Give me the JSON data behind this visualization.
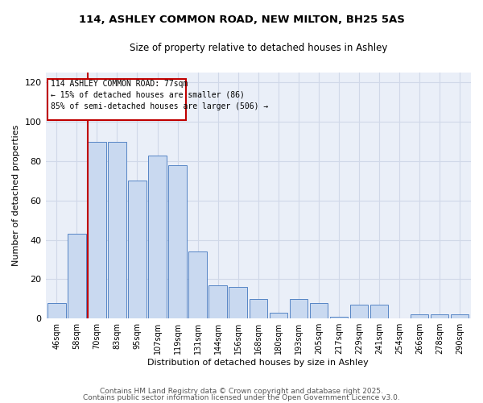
{
  "title1": "114, ASHLEY COMMON ROAD, NEW MILTON, BH25 5AS",
  "title2": "Size of property relative to detached houses in Ashley",
  "xlabel": "Distribution of detached houses by size in Ashley",
  "ylabel": "Number of detached properties",
  "categories": [
    "46sqm",
    "58sqm",
    "70sqm",
    "83sqm",
    "95sqm",
    "107sqm",
    "119sqm",
    "131sqm",
    "144sqm",
    "156sqm",
    "168sqm",
    "180sqm",
    "193sqm",
    "205sqm",
    "217sqm",
    "229sqm",
    "241sqm",
    "254sqm",
    "266sqm",
    "278sqm",
    "290sqm"
  ],
  "values": [
    8,
    43,
    90,
    90,
    70,
    83,
    78,
    34,
    17,
    16,
    10,
    3,
    10,
    8,
    1,
    7,
    7,
    0,
    2,
    2,
    2
  ],
  "bar_color": "#c9d9f0",
  "bar_edge_color": "#5585c5",
  "vline_x_index": 2,
  "vline_color": "#c00000",
  "annotation_lines": [
    "114 ASHLEY COMMON ROAD: 77sqm",
    "← 15% of detached houses are smaller (86)",
    "85% of semi-detached houses are larger (506) →"
  ],
  "annotation_box_color": "#c00000",
  "ylim": [
    0,
    125
  ],
  "yticks": [
    0,
    20,
    40,
    60,
    80,
    100,
    120
  ],
  "grid_color": "#d0d8e8",
  "bg_color": "#eaeff8",
  "footer1": "Contains HM Land Registry data © Crown copyright and database right 2025.",
  "footer2": "Contains public sector information licensed under the Open Government Licence v3.0."
}
